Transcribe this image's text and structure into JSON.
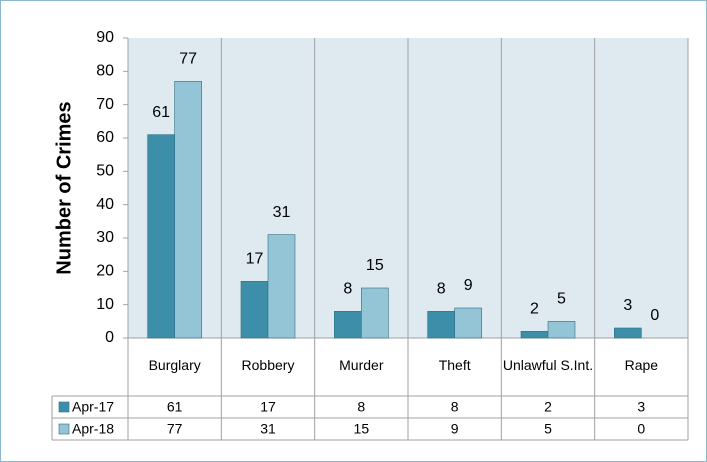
{
  "chart_data": {
    "type": "bar",
    "y_label": "Number of Crimes",
    "categories": [
      "Burglary",
      "Robbery",
      "Murder",
      "Theft",
      "Unlawful S.Int.",
      "Rape"
    ],
    "series": [
      {
        "name": "Apr-17",
        "color": "#3d8fa9",
        "values": [
          61,
          17,
          8,
          8,
          2,
          3
        ]
      },
      {
        "name": "Apr-18",
        "color": "#93c5d7",
        "values": [
          77,
          31,
          15,
          9,
          5,
          0
        ]
      }
    ],
    "ylim": [
      0,
      90
    ],
    "yticks": [
      0,
      10,
      20,
      30,
      40,
      50,
      60,
      70,
      80,
      90
    ],
    "grid": false,
    "data_table": true
  }
}
